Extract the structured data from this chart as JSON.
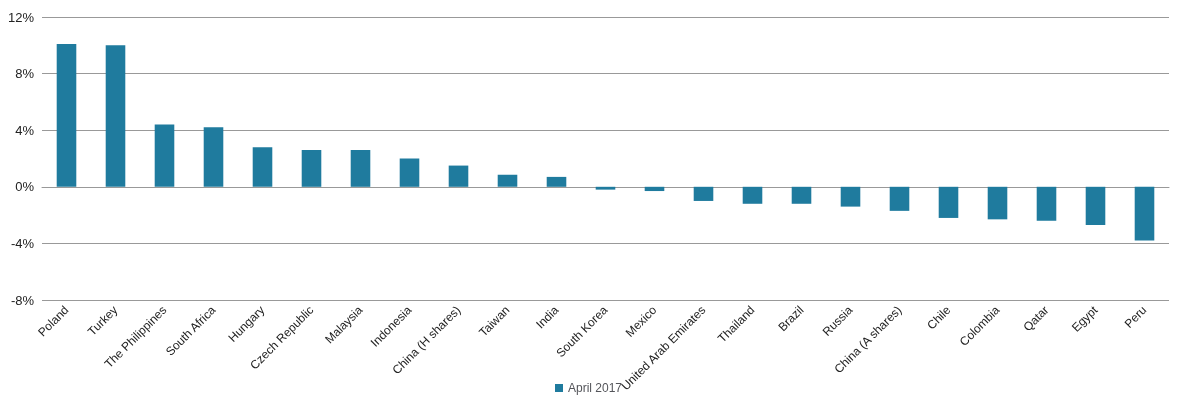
{
  "chart_data": {
    "type": "bar",
    "categories": [
      "Poland",
      "Turkey",
      "The Philippines",
      "South Africa",
      "Hungary",
      "Czech Republic",
      "Malaysia",
      "Indonesia",
      "China (H shares)",
      "Taiwan",
      "India",
      "South Korea",
      "Mexico",
      "United Arab Emirates",
      "Thailand",
      "Brazil",
      "Russia",
      "China (A shares)",
      "Chile",
      "Colombia",
      "Qatar",
      "Egypt",
      "Peru"
    ],
    "series": [
      {
        "name": "April 2017",
        "color": "#1f7b9e",
        "values": [
          10.1,
          10.0,
          4.4,
          4.2,
          2.8,
          2.6,
          2.6,
          2.0,
          1.5,
          0.85,
          0.7,
          -0.2,
          -0.3,
          -1.0,
          -1.2,
          -1.2,
          -1.4,
          -1.7,
          -2.2,
          -2.3,
          -2.4,
          -2.7,
          -3.8
        ]
      }
    ],
    "ylim": [
      -8,
      12
    ],
    "yticks": [
      {
        "value": -8,
        "label": "-8%"
      },
      {
        "value": -4,
        "label": "-4%"
      },
      {
        "value": 0,
        "label": "0%"
      },
      {
        "value": 4,
        "label": "4%"
      },
      {
        "value": 8,
        "label": "8%"
      },
      {
        "value": 12,
        "label": "12%"
      }
    ],
    "grid": "y",
    "legend": "bottom"
  }
}
